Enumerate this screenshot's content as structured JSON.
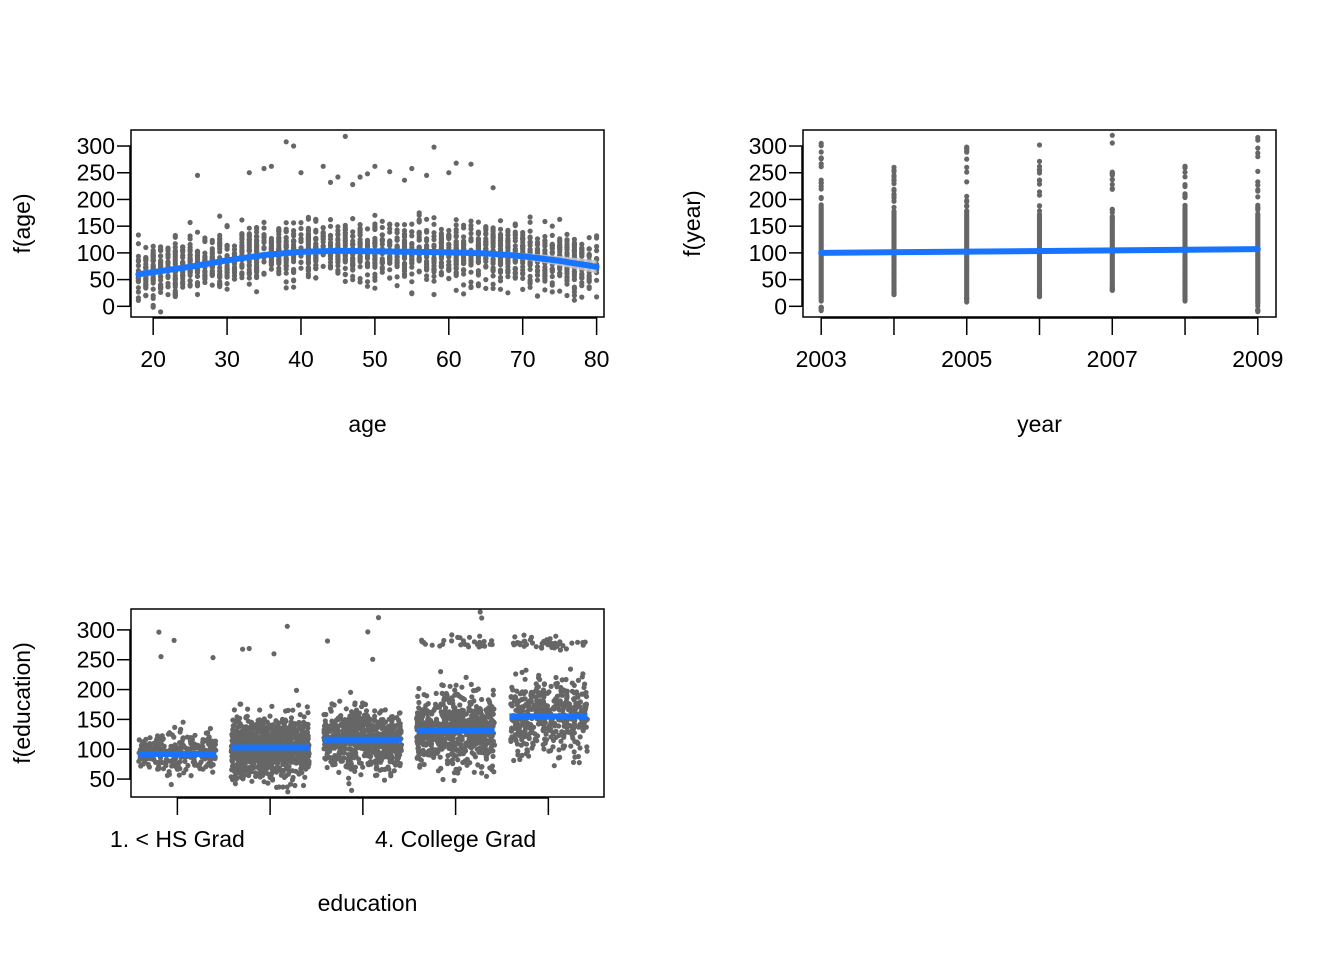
{
  "colors": {
    "points": "#666666",
    "fit": "#1874ff",
    "band": "#c8c8c8",
    "axis": "#000000"
  },
  "chart_data": [
    {
      "type": "scatter",
      "xlabel": "age",
      "ylabel": "f(age)",
      "xlim": [
        17,
        81
      ],
      "ylim": [
        -20,
        330
      ],
      "x_ticks": [
        20,
        30,
        40,
        50,
        60,
        70,
        80
      ],
      "x_tick_labels": [
        "20",
        "30",
        "40",
        "50",
        "60",
        "70",
        "80"
      ],
      "y_ticks": [
        0,
        50,
        100,
        150,
        200,
        250,
        300
      ],
      "y_tick_labels": [
        "0",
        "50",
        "100",
        "150",
        "200",
        "250",
        "300"
      ],
      "fit": {
        "x": [
          18,
          25,
          30,
          35,
          40,
          45,
          50,
          55,
          60,
          65,
          70,
          75,
          80
        ],
        "y": [
          60,
          74,
          86,
          96,
          102,
          104,
          103,
          102,
          101,
          99,
          94,
          85,
          74
        ]
      },
      "band_halfwidth": {
        "x": [
          18,
          30,
          45,
          60,
          70,
          80
        ],
        "w": [
          6,
          3,
          2,
          3,
          6,
          12
        ]
      },
      "outliers": {
        "x": [
          38,
          39,
          46,
          58,
          26,
          33,
          35,
          36,
          40,
          43,
          45,
          47,
          49,
          50,
          52,
          55,
          57,
          60,
          61,
          63,
          66,
          48,
          44,
          54
        ],
        "y": [
          308,
          300,
          318,
          298,
          245,
          250,
          258,
          262,
          250,
          262,
          242,
          228,
          248,
          262,
          252,
          258,
          245,
          250,
          268,
          266,
          222,
          242,
          232,
          236
        ]
      },
      "cloud": {
        "center": "fit",
        "sd": 27,
        "n": 1800,
        "x_range": [
          18,
          80
        ]
      }
    },
    {
      "type": "scatter",
      "xlabel": "year",
      "ylabel": "f(year)",
      "xlim": [
        2002.75,
        2009.25
      ],
      "ylim": [
        -20,
        330
      ],
      "x_ticks": [
        2003,
        2004,
        2005,
        2006,
        2007,
        2008,
        2009
      ],
      "x_tick_labels": [
        "2003",
        "",
        "2005",
        "",
        "2007",
        "",
        "2009"
      ],
      "y_ticks": [
        0,
        50,
        100,
        150,
        200,
        250,
        300
      ],
      "y_tick_labels": [
        "0",
        "50",
        "100",
        "150",
        "200",
        "250",
        "300"
      ],
      "fit": {
        "x": [
          2003,
          2009
        ],
        "y": [
          100,
          107
        ]
      },
      "columns": {
        "x": [
          2003,
          2004,
          2005,
          2006,
          2007,
          2008,
          2009
        ],
        "min": [
          -8,
          22,
          8,
          18,
          30,
          10,
          -10
        ],
        "max": [
          305,
          260,
          298,
          302,
          320,
          262,
          316
        ],
        "dense_low": [
          10,
          28,
          15,
          25,
          35,
          22,
          5
        ],
        "dense_high": [
          190,
          180,
          178,
          172,
          168,
          185,
          175
        ]
      }
    },
    {
      "type": "scatter",
      "xlabel": "education",
      "ylabel": "f(education)",
      "xlim": [
        0.5,
        5.6
      ],
      "ylim": [
        20,
        335
      ],
      "x_ticks": [
        1,
        2,
        3,
        4,
        5
      ],
      "x_tick_labels": [
        "1. < HS Grad",
        "",
        "",
        "4. College Grad",
        ""
      ],
      "y_ticks": [
        50,
        100,
        150,
        200,
        250,
        300
      ],
      "y_tick_labels": [
        "50",
        "100",
        "150",
        "200",
        "250",
        "300"
      ],
      "fit": {
        "categories": [
          1,
          2,
          3,
          4,
          5
        ],
        "values": [
          92,
          103,
          116,
          131,
          155
        ]
      },
      "groups": {
        "sd": [
          17,
          25,
          25,
          30,
          32
        ],
        "n": [
          270,
          950,
          650,
          700,
          430
        ],
        "high_cluster_y": [
          0,
          0,
          0,
          280,
          278
        ],
        "high_cluster_n": [
          0,
          0,
          0,
          28,
          42
        ]
      }
    }
  ]
}
